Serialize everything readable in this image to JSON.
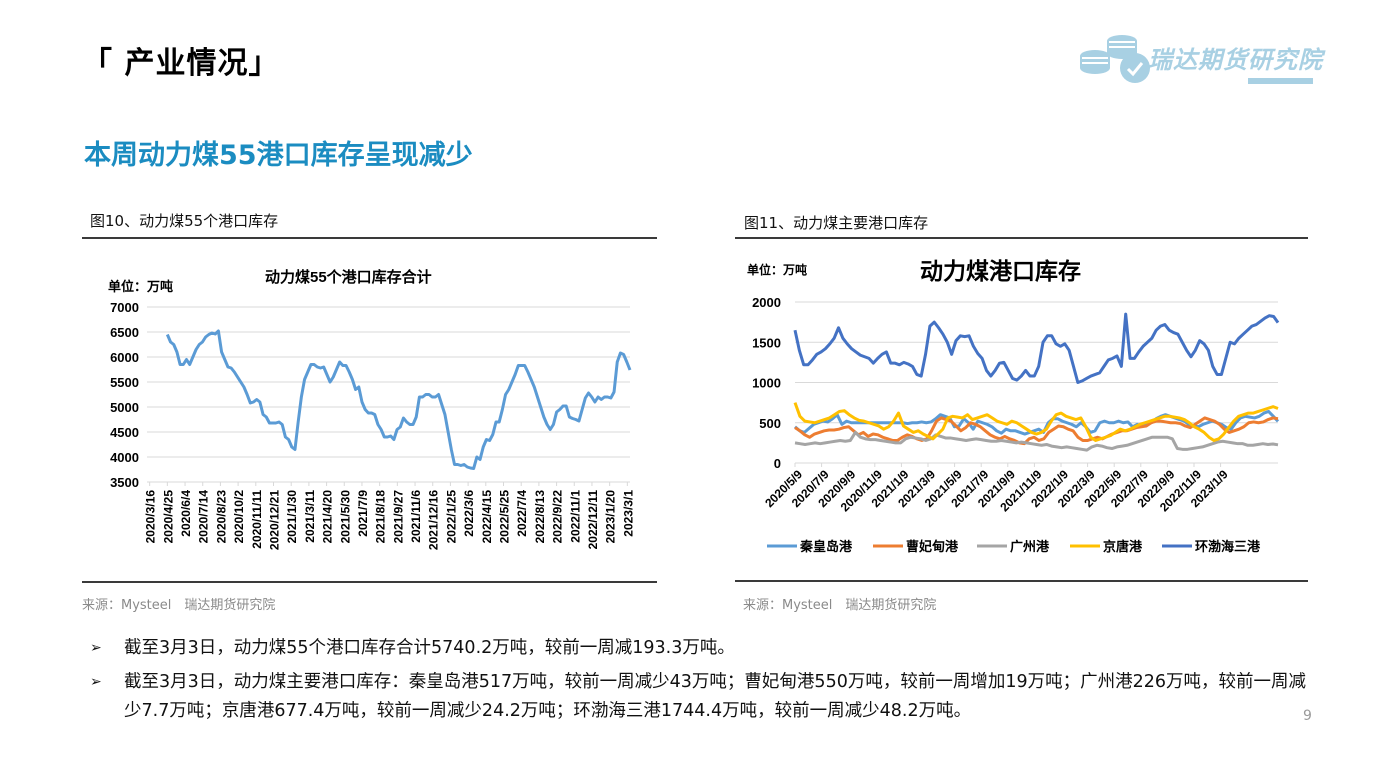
{
  "header": {
    "section_title": "「 产业情况」",
    "logo_text": "瑞达期货研究院",
    "logo_color": "#a8d0e3"
  },
  "headline": {
    "text": "本周动力煤55港口库存呈现减少",
    "color": "#1b8cc1"
  },
  "figures": [
    {
      "caption": "图10、动力煤55个港口库存",
      "source": "来源：Mysteel　瑞达期货研究院"
    },
    {
      "caption": "图11、动力煤主要港口库存",
      "source": "来源：Mysteel　瑞达期货研究院"
    }
  ],
  "chart_data": [
    {
      "type": "line",
      "title": "动力煤55个港口库存合计",
      "unit_label": "单位：万吨",
      "xlabel": "",
      "ylabel": "",
      "ylim": [
        3500,
        7000
      ],
      "yticks": [
        "7000",
        "6500",
        "6000",
        "5500",
        "5000",
        "4500",
        "4000",
        "3500"
      ],
      "grid": true,
      "legend": "none",
      "x_tick_labels": [
        "2020/3/16",
        "2020/4/25",
        "2020/6/4",
        "2020/7/14",
        "2020/8/23",
        "2020/10/2",
        "2020/11/11",
        "2020/12/21",
        "2021/1/30",
        "2021/3/11",
        "2021/4/20",
        "2021/5/30",
        "2021/7/9",
        "2021/8/18",
        "2021/9/27",
        "2021/11/6",
        "2021/12/16",
        "2022/1/25",
        "2022/3/6",
        "2022/4/15",
        "2022/5/25",
        "2022/7/4",
        "2022/8/13",
        "2022/9/22",
        "2022/11/1",
        "2022/12/11",
        "2023/1/20",
        "2023/3/1"
      ],
      "series": [
        {
          "name": "动力煤55个港口库存合计",
          "color": "#5b9bd5",
          "x_start": "2020/4/25",
          "x_end": "2023/3/3",
          "values": [
            6450,
            6300,
            6250,
            6100,
            5850,
            5850,
            5950,
            5850,
            6000,
            6150,
            6250,
            6300,
            6400,
            6450,
            6480,
            6460,
            6520,
            6100,
            5950,
            5800,
            5780,
            5700,
            5600,
            5500,
            5400,
            5250,
            5080,
            5100,
            5150,
            5100,
            4850,
            4800,
            4680,
            4680,
            4680,
            4700,
            4650,
            4400,
            4350,
            4200,
            4150,
            4700,
            5200,
            5550,
            5700,
            5850,
            5850,
            5800,
            5780,
            5800,
            5650,
            5500,
            5600,
            5750,
            5900,
            5830,
            5830,
            5700,
            5550,
            5350,
            5400,
            5100,
            4950,
            4880,
            4880,
            4850,
            4650,
            4550,
            4400,
            4400,
            4420,
            4350,
            4550,
            4600,
            4780,
            4700,
            4650,
            4650,
            4800,
            5200,
            5200,
            5250,
            5250,
            5200,
            5200,
            5250,
            5050,
            4850,
            4500,
            4150,
            3850,
            3850,
            3830,
            3850,
            3800,
            3780,
            3770,
            4000,
            3950,
            4200,
            4350,
            4330,
            4450,
            4700,
            4700,
            4950,
            5250,
            5350,
            5500,
            5650,
            5830,
            5830,
            5830,
            5700,
            5550,
            5400,
            5200,
            5000,
            4800,
            4650,
            4550,
            4650,
            4900,
            4950,
            5020,
            5020,
            4800,
            4770,
            4750,
            4720,
            4950,
            5180,
            5280,
            5200,
            5100,
            5200,
            5150,
            5200,
            5200,
            5180,
            5300,
            5900,
            6080,
            6050,
            5900,
            5740
          ]
        }
      ]
    },
    {
      "type": "line",
      "title": "动力煤港口库存",
      "unit_label": "单位：万吨",
      "xlabel": "",
      "ylabel": "",
      "ylim": [
        0,
        2000
      ],
      "yticks": [
        "2000",
        "1500",
        "1000",
        "500",
        "0"
      ],
      "grid": true,
      "legend": "bottom",
      "x_tick_labels": [
        "2020/5/9",
        "2020/7/9",
        "2020/9/9",
        "2020/11/9",
        "2021/1/9",
        "2021/3/9",
        "2021/5/9",
        "2021/7/9",
        "2021/9/9",
        "2021/11/9",
        "2022/1/9",
        "2022/3/9",
        "2022/5/9",
        "2022/7/9",
        "2022/9/9",
        "2022/11/9",
        "2023/1/9"
      ],
      "series": [
        {
          "name": "秦皇岛港",
          "color": "#5b9bd5",
          "values": [
            450,
            400,
            380,
            430,
            480,
            500,
            520,
            510,
            550,
            600,
            480,
            520,
            500,
            500,
            500,
            500,
            500,
            500,
            500,
            500,
            500,
            500,
            500,
            500,
            490,
            500,
            500,
            510,
            500,
            510,
            550,
            600,
            580,
            560,
            450,
            460,
            550,
            500,
            420,
            520,
            500,
            480,
            450,
            400,
            370,
            420,
            400,
            400,
            380,
            360,
            380,
            400,
            420,
            380,
            500,
            550,
            550,
            520,
            500,
            480,
            450,
            500,
            450,
            380,
            400,
            500,
            520,
            500,
            500,
            520,
            500,
            510,
            450,
            480,
            460,
            500,
            500,
            550,
            580,
            600,
            580,
            560,
            540,
            520,
            480,
            460,
            450,
            480,
            500,
            520,
            500,
            480,
            440,
            420,
            500,
            560,
            580,
            570,
            560,
            580,
            620,
            640,
            580,
            517
          ]
        },
        {
          "name": "曹妃甸港",
          "color": "#ed7d31",
          "values": [
            440,
            400,
            350,
            320,
            360,
            380,
            400,
            410,
            410,
            420,
            440,
            450,
            400,
            350,
            380,
            330,
            360,
            350,
            320,
            300,
            280,
            280,
            320,
            350,
            330,
            300,
            280,
            300,
            400,
            520,
            560,
            540,
            520,
            460,
            400,
            440,
            500,
            480,
            450,
            400,
            350,
            320,
            300,
            330,
            300,
            280,
            250,
            240,
            300,
            320,
            280,
            300,
            380,
            420,
            460,
            450,
            420,
            400,
            320,
            280,
            280,
            300,
            320,
            300,
            330,
            360,
            380,
            400,
            400,
            420,
            440,
            450,
            460,
            500,
            520,
            520,
            510,
            500,
            500,
            490,
            460,
            440,
            480,
            520,
            560,
            540,
            520,
            480,
            420,
            380,
            400,
            420,
            450,
            500,
            510,
            500,
            510,
            540,
            560,
            550
          ]
        },
        {
          "name": "广州港",
          "color": "#a5a5a5",
          "values": [
            250,
            240,
            230,
            240,
            250,
            240,
            250,
            260,
            270,
            280,
            270,
            280,
            380,
            320,
            300,
            290,
            290,
            280,
            270,
            260,
            250,
            250,
            300,
            320,
            310,
            300,
            280,
            300,
            350,
            330,
            310,
            310,
            300,
            290,
            280,
            290,
            300,
            290,
            280,
            270,
            270,
            280,
            270,
            260,
            250,
            260,
            250,
            240,
            230,
            220,
            230,
            210,
            200,
            190,
            200,
            190,
            180,
            170,
            160,
            200,
            220,
            210,
            190,
            180,
            200,
            210,
            220,
            240,
            260,
            280,
            300,
            320,
            320,
            320,
            320,
            300,
            180,
            170,
            170,
            180,
            190,
            200,
            220,
            240,
            260,
            270,
            260,
            250,
            240,
            240,
            220,
            220,
            230,
            240,
            230,
            236,
            226
          ]
        },
        {
          "name": "京唐港",
          "color": "#ffc000",
          "values": [
            750,
            580,
            520,
            510,
            500,
            520,
            540,
            560,
            600,
            640,
            650,
            600,
            560,
            530,
            520,
            500,
            480,
            460,
            420,
            450,
            520,
            620,
            460,
            420,
            380,
            400,
            360,
            330,
            300,
            360,
            420,
            560,
            580,
            570,
            560,
            600,
            540,
            560,
            580,
            600,
            560,
            520,
            500,
            480,
            520,
            500,
            460,
            420,
            380,
            360,
            380,
            420,
            520,
            600,
            620,
            580,
            560,
            540,
            560,
            450,
            320,
            280,
            300,
            320,
            340,
            380,
            420,
            400,
            420,
            450,
            480,
            500,
            520,
            540,
            560,
            580,
            580,
            570,
            560,
            540,
            500,
            450,
            420,
            380,
            320,
            280,
            300,
            360,
            440,
            520,
            580,
            600,
            620,
            620,
            640,
            660,
            680,
            700,
            677
          ]
        },
        {
          "name": "环渤海三港",
          "color": "#4472c4",
          "values": [
            1650,
            1400,
            1220,
            1220,
            1280,
            1350,
            1380,
            1420,
            1480,
            1550,
            1680,
            1550,
            1480,
            1420,
            1380,
            1340,
            1320,
            1300,
            1240,
            1300,
            1350,
            1380,
            1240,
            1240,
            1220,
            1250,
            1230,
            1200,
            1100,
            1080,
            1350,
            1700,
            1750,
            1680,
            1600,
            1500,
            1350,
            1520,
            1580,
            1570,
            1580,
            1450,
            1360,
            1300,
            1150,
            1080,
            1150,
            1240,
            1250,
            1150,
            1050,
            1030,
            1080,
            1150,
            1080,
            1080,
            1200,
            1500,
            1580,
            1580,
            1480,
            1450,
            1480,
            1400,
            1200,
            1000,
            1020,
            1050,
            1080,
            1100,
            1120,
            1200,
            1280,
            1300,
            1330,
            1200,
            1850,
            1300,
            1300,
            1380,
            1450,
            1500,
            1550,
            1650,
            1700,
            1720,
            1650,
            1620,
            1600,
            1500,
            1400,
            1320,
            1400,
            1520,
            1480,
            1400,
            1200,
            1100,
            1100,
            1300,
            1500,
            1480,
            1550,
            1600,
            1650,
            1700,
            1720,
            1760,
            1800,
            1830,
            1820,
            1744
          ]
        }
      ]
    }
  ],
  "bullets": [
    {
      "glyph": "➢",
      "text": "截至3月3日，动力煤55个港口库存合计5740.2万吨，较前一周减193.3万吨。"
    },
    {
      "glyph": "➢",
      "text": "截至3月3日，动力煤主要港口库存：秦皇岛港517万吨，较前一周减少43万吨；曹妃甸港550万吨，较前一周增加19万吨；广州港226万吨，较前一周减少7.7万吨；京唐港677.4万吨，较前一周减少24.2万吨；环渤海三港1744.4万吨，较前一周减少48.2万吨。"
    }
  ],
  "page_number": "9"
}
